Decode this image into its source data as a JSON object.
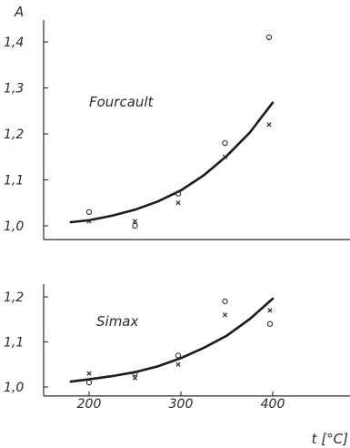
{
  "chart_data": [
    {
      "type": "scatter",
      "panel_label": "Fourcault",
      "ylabel": "A",
      "xlabel": "",
      "xlim": [
        160,
        460
      ],
      "ylim": [
        0.97,
        1.45
      ],
      "y_ticks": [
        1.0,
        1.1,
        1.2,
        1.3,
        1.4
      ],
      "y_tick_labels": [
        "1,0",
        "1,1",
        "1,2",
        "1,3",
        "1,4"
      ],
      "x_ticks": [],
      "x_tick_labels": [],
      "series": [
        {
          "marker": "circle",
          "points": [
            [
              200,
              1.03
            ],
            [
              250,
              1.0
            ],
            [
              297,
              1.07
            ],
            [
              348,
              1.18
            ],
            [
              396,
              1.41
            ]
          ]
        },
        {
          "marker": "cross",
          "points": [
            [
              200,
              1.01
            ],
            [
              250,
              1.01
            ],
            [
              297,
              1.05
            ],
            [
              348,
              1.15
            ],
            [
              396,
              1.22
            ]
          ]
        }
      ],
      "fit": {
        "points": [
          [
            180,
            1.008
          ],
          [
            200,
            1.012
          ],
          [
            225,
            1.022
          ],
          [
            250,
            1.035
          ],
          [
            275,
            1.053
          ],
          [
            300,
            1.077
          ],
          [
            325,
            1.11
          ],
          [
            350,
            1.152
          ],
          [
            375,
            1.203
          ],
          [
            400,
            1.268
          ]
        ]
      }
    },
    {
      "type": "scatter",
      "panel_label": "Simax",
      "ylabel": "",
      "xlabel": "t [°C]",
      "xlim": [
        160,
        460
      ],
      "ylim": [
        0.98,
        1.22
      ],
      "y_ticks": [
        1.0,
        1.1,
        1.2
      ],
      "y_tick_labels": [
        "1,0",
        "1,1",
        "1,2"
      ],
      "x_ticks": [
        200,
        300,
        400
      ],
      "x_tick_labels": [
        "200",
        "300",
        "400"
      ],
      "series": [
        {
          "marker": "circle",
          "points": [
            [
              200,
              1.01
            ],
            [
              250,
              1.03
            ],
            [
              297,
              1.07
            ],
            [
              348,
              1.19
            ],
            [
              397,
              1.14
            ]
          ]
        },
        {
          "marker": "cross",
          "points": [
            [
              200,
              1.03
            ],
            [
              250,
              1.02
            ],
            [
              297,
              1.05
            ],
            [
              348,
              1.16
            ],
            [
              397,
              1.17
            ]
          ]
        }
      ],
      "fit": {
        "points": [
          [
            180,
            1.012
          ],
          [
            200,
            1.017
          ],
          [
            225,
            1.024
          ],
          [
            250,
            1.033
          ],
          [
            275,
            1.046
          ],
          [
            300,
            1.064
          ],
          [
            325,
            1.087
          ],
          [
            350,
            1.114
          ],
          [
            375,
            1.151
          ],
          [
            400,
            1.196
          ]
        ]
      }
    }
  ]
}
